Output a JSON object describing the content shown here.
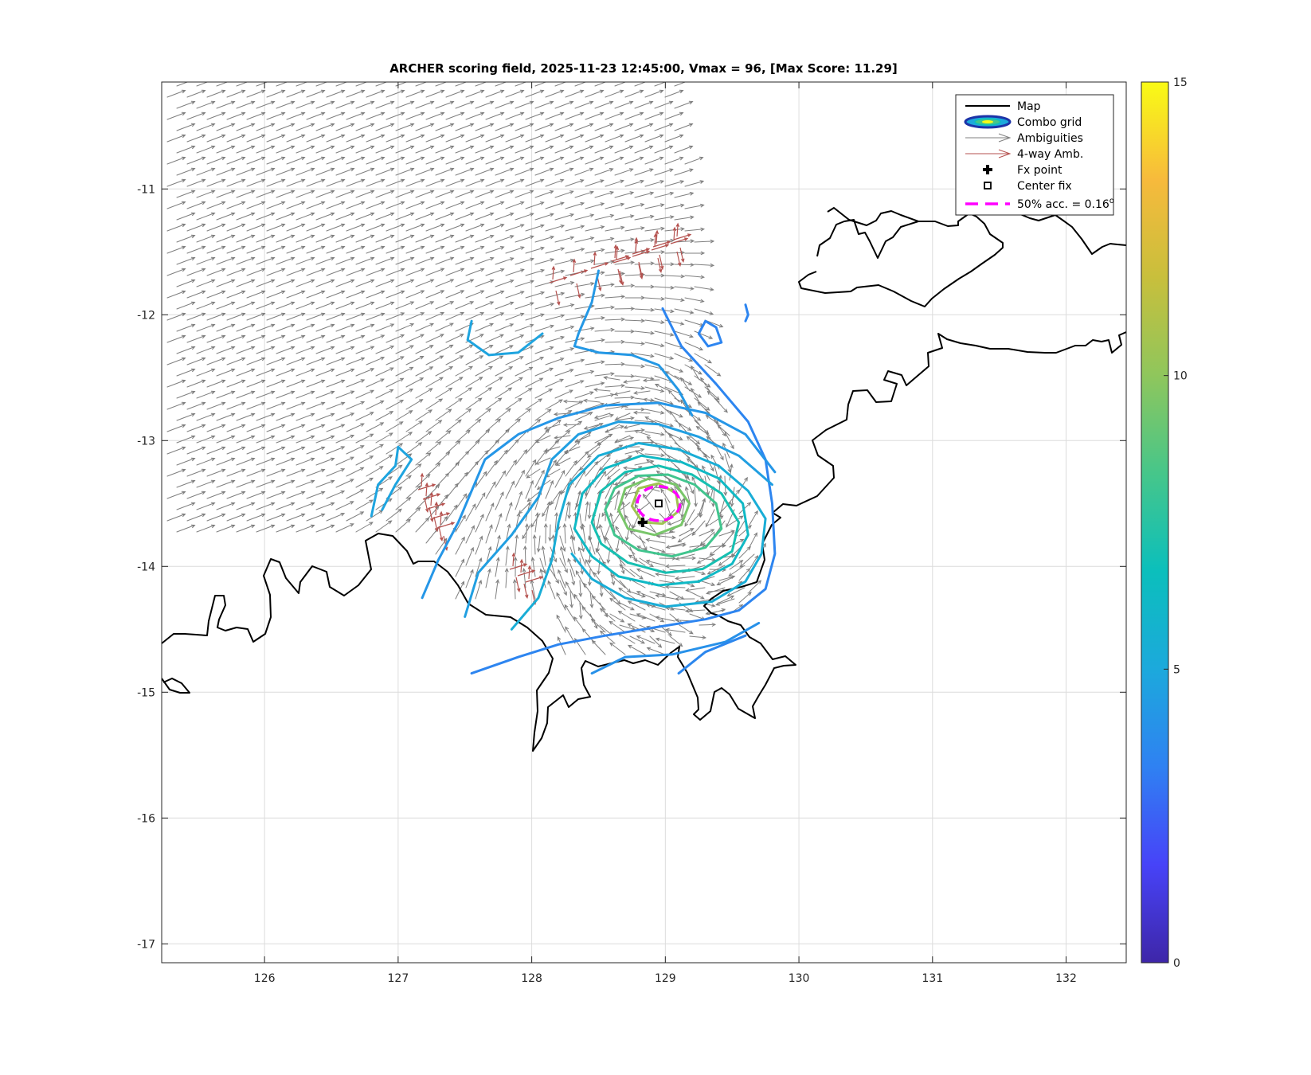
{
  "chart_data": {
    "type": "contour",
    "title": "ARCHER scoring field, 2025-11-23 12:45:00, Vmax = 96, [Max Score: 11.29]",
    "xlabel": "",
    "ylabel": "",
    "xlim": [
      125.23,
      132.45
    ],
    "ylim": [
      -17.15,
      -10.15
    ],
    "x_ticks": [
      "126",
      "127",
      "128",
      "129",
      "130",
      "131",
      "132"
    ],
    "y_ticks": [
      "-11",
      "-12",
      "-13",
      "-14",
      "-15",
      "-16",
      "-17"
    ],
    "grid": true,
    "colorbar": {
      "range": [
        0,
        15
      ],
      "ticks": [
        "0",
        "5",
        "10",
        "15"
      ],
      "colormap": "parula",
      "stops": [
        "#3e26a8",
        "#4743f8",
        "#2f81f2",
        "#1ca9dc",
        "#0bbfbc",
        "#46c68a",
        "#8fc65c",
        "#c8bf3c",
        "#f7ba3c",
        "#f9fb15"
      ]
    },
    "legend": {
      "location": "top-right",
      "entries": [
        {
          "label": "Map",
          "color": "#000000",
          "symbol": "line"
        },
        {
          "label": "Combo grid",
          "color": "#1c33a8",
          "symbol": "ellipse"
        },
        {
          "label": "Ambiguities",
          "color": "#808080",
          "symbol": "arrow"
        },
        {
          "label": "4-way Amb.",
          "color": "#b5524f",
          "symbol": "arrow"
        },
        {
          "label": "Fx point",
          "color": "#000000",
          "symbol": "plus"
        },
        {
          "label": "Center fix",
          "color": "#000000",
          "symbol": "square"
        },
        {
          "label": "50% acc. = 0.16",
          "superscript": "o",
          "color": "#ff00ff",
          "symbol": "dashed"
        }
      ]
    },
    "center_fix": {
      "lon": 128.95,
      "lat": -13.5
    },
    "fx_point": {
      "lon": 128.83,
      "lat": -13.65
    },
    "acc_circle": {
      "lon": 128.95,
      "lat": -13.5,
      "radius_deg": 0.16
    },
    "contours": [
      {
        "level": 3.5,
        "points": [
          [
            127.55,
            -14.85
          ],
          [
            127.9,
            -14.72
          ],
          [
            128.2,
            -14.62
          ],
          [
            128.55,
            -14.55
          ],
          [
            128.95,
            -14.48
          ],
          [
            129.3,
            -14.42
          ],
          [
            129.55,
            -14.35
          ],
          [
            129.75,
            -14.18
          ],
          [
            129.82,
            -13.9
          ],
          [
            129.8,
            -13.5
          ],
          [
            129.75,
            -13.15
          ],
          [
            129.62,
            -12.85
          ],
          [
            129.38,
            -12.55
          ],
          [
            129.12,
            -12.25
          ],
          [
            128.98,
            -11.95
          ]
        ]
      },
      {
        "level": 4.2,
        "points": [
          [
            127.18,
            -14.25
          ],
          [
            127.3,
            -13.95
          ],
          [
            127.45,
            -13.65
          ],
          [
            127.55,
            -13.4
          ],
          [
            127.65,
            -13.15
          ],
          [
            127.9,
            -12.95
          ],
          [
            128.2,
            -12.82
          ],
          [
            128.55,
            -12.72
          ],
          [
            128.95,
            -12.7
          ],
          [
            129.3,
            -12.78
          ],
          [
            129.6,
            -12.95
          ],
          [
            129.82,
            -13.25
          ]
        ]
      },
      {
        "level": 4.6,
        "points": [
          [
            127.5,
            -14.4
          ],
          [
            127.6,
            -14.05
          ],
          [
            127.85,
            -13.75
          ],
          [
            128.05,
            -13.45
          ],
          [
            128.15,
            -13.15
          ],
          [
            128.35,
            -12.95
          ],
          [
            128.65,
            -12.85
          ],
          [
            128.95,
            -12.87
          ],
          [
            129.25,
            -12.97
          ],
          [
            129.55,
            -13.12
          ],
          [
            129.8,
            -13.35
          ]
        ]
      },
      {
        "level": 5.3,
        "points": [
          [
            127.85,
            -14.5
          ],
          [
            128.05,
            -14.25
          ],
          [
            128.15,
            -13.95
          ],
          [
            128.2,
            -13.65
          ],
          [
            128.28,
            -13.35
          ],
          [
            128.5,
            -13.12
          ],
          [
            128.8,
            -13.02
          ],
          [
            129.1,
            -13.07
          ],
          [
            129.4,
            -13.2
          ],
          [
            129.62,
            -13.4
          ],
          [
            129.75,
            -13.62
          ],
          [
            129.72,
            -13.9
          ],
          [
            129.6,
            -14.12
          ],
          [
            129.35,
            -14.28
          ],
          [
            129.0,
            -14.32
          ],
          [
            128.7,
            -14.25
          ],
          [
            128.45,
            -14.1
          ],
          [
            128.3,
            -13.9
          ]
        ]
      },
      {
        "level": 6.2,
        "points": [
          [
            128.32,
            -13.7
          ],
          [
            128.38,
            -13.42
          ],
          [
            128.55,
            -13.22
          ],
          [
            128.82,
            -13.12
          ],
          [
            129.12,
            -13.17
          ],
          [
            129.4,
            -13.3
          ],
          [
            129.58,
            -13.5
          ],
          [
            129.62,
            -13.75
          ],
          [
            129.5,
            -13.98
          ],
          [
            129.25,
            -14.12
          ],
          [
            128.95,
            -14.15
          ],
          [
            128.65,
            -14.08
          ],
          [
            128.45,
            -13.92
          ],
          [
            128.32,
            -13.7
          ]
        ]
      },
      {
        "level": 7.0,
        "points": [
          [
            128.45,
            -13.65
          ],
          [
            128.52,
            -13.4
          ],
          [
            128.7,
            -13.25
          ],
          [
            128.95,
            -13.2
          ],
          [
            129.2,
            -13.27
          ],
          [
            129.42,
            -13.42
          ],
          [
            129.55,
            -13.65
          ],
          [
            129.5,
            -13.88
          ],
          [
            129.28,
            -14.02
          ],
          [
            129.0,
            -14.05
          ],
          [
            128.72,
            -13.97
          ],
          [
            128.52,
            -13.82
          ],
          [
            128.45,
            -13.65
          ]
        ]
      },
      {
        "level": 8.2,
        "points": [
          [
            128.55,
            -13.55
          ],
          [
            128.62,
            -13.38
          ],
          [
            128.8,
            -13.28
          ],
          [
            129.02,
            -13.27
          ],
          [
            129.22,
            -13.35
          ],
          [
            129.38,
            -13.5
          ],
          [
            129.42,
            -13.7
          ],
          [
            129.3,
            -13.85
          ],
          [
            129.05,
            -13.92
          ],
          [
            128.8,
            -13.87
          ],
          [
            128.62,
            -13.75
          ],
          [
            128.55,
            -13.55
          ]
        ]
      },
      {
        "level": 9.5,
        "points": [
          [
            128.65,
            -13.55
          ],
          [
            128.7,
            -13.38
          ],
          [
            128.88,
            -13.3
          ],
          [
            129.08,
            -13.35
          ],
          [
            129.18,
            -13.5
          ],
          [
            129.12,
            -13.67
          ],
          [
            128.92,
            -13.75
          ],
          [
            128.72,
            -13.7
          ],
          [
            128.65,
            -13.55
          ]
        ]
      },
      {
        "level": 10.5,
        "points": [
          [
            128.75,
            -13.52
          ],
          [
            128.8,
            -13.38
          ],
          [
            128.95,
            -13.34
          ],
          [
            129.08,
            -13.42
          ],
          [
            129.1,
            -13.56
          ],
          [
            128.98,
            -13.66
          ],
          [
            128.83,
            -13.65
          ],
          [
            128.75,
            -13.52
          ]
        ]
      },
      {
        "level": 4.8,
        "points": [
          [
            126.8,
            -13.6
          ],
          [
            126.85,
            -13.35
          ],
          [
            126.98,
            -13.2
          ],
          [
            127.0,
            -13.05
          ],
          [
            127.1,
            -13.15
          ],
          [
            126.98,
            -13.35
          ],
          [
            126.88,
            -13.55
          ]
        ]
      },
      {
        "level": 4.8,
        "points": [
          [
            128.08,
            -12.15
          ],
          [
            127.9,
            -12.3
          ],
          [
            127.68,
            -12.32
          ],
          [
            127.52,
            -12.2
          ],
          [
            127.55,
            -12.05
          ]
        ]
      },
      {
        "level": 4.3,
        "points": [
          [
            128.5,
            -11.65
          ],
          [
            128.45,
            -11.9
          ],
          [
            128.35,
            -12.15
          ],
          [
            128.32,
            -12.25
          ],
          [
            128.5,
            -12.3
          ],
          [
            128.75,
            -12.32
          ],
          [
            128.95,
            -12.4
          ],
          [
            129.1,
            -12.6
          ],
          [
            129.2,
            -12.8
          ]
        ]
      },
      {
        "level": 3.5,
        "points": [
          [
            129.3,
            -12.05
          ],
          [
            129.38,
            -12.1
          ],
          [
            129.42,
            -12.22
          ],
          [
            129.32,
            -12.25
          ],
          [
            129.25,
            -12.15
          ],
          [
            129.3,
            -12.05
          ]
        ]
      },
      {
        "level": 3.5,
        "points": [
          [
            129.6,
            -11.92
          ],
          [
            129.62,
            -12.0
          ],
          [
            129.6,
            -12.05
          ]
        ]
      },
      {
        "level": 4.0,
        "points": [
          [
            128.45,
            -14.85
          ],
          [
            128.7,
            -14.72
          ],
          [
            129.05,
            -14.7
          ],
          [
            129.45,
            -14.6
          ],
          [
            129.7,
            -14.45
          ]
        ]
      },
      {
        "level": 3.6,
        "points": [
          [
            129.1,
            -14.85
          ],
          [
            129.3,
            -14.68
          ],
          [
            129.6,
            -14.55
          ]
        ]
      }
    ]
  }
}
